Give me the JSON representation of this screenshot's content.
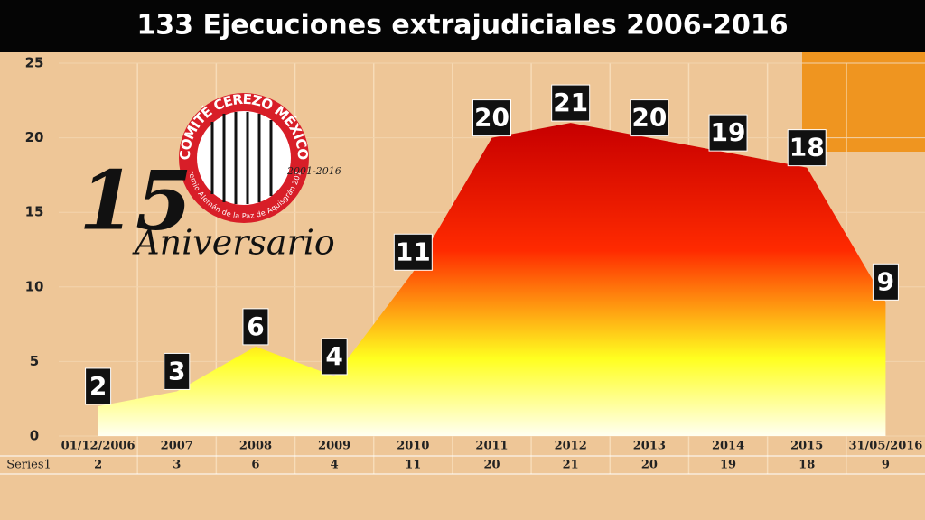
{
  "chart_data": {
    "type": "area",
    "title": "133 Ejecuciones extrajudiciales 2006-2016",
    "categories": [
      "01/12/2006",
      "2007",
      "2008",
      "2009",
      "2010",
      "2011",
      "2012",
      "2013",
      "2014",
      "2015",
      "31/05/2016"
    ],
    "series": [
      {
        "name": "Series1",
        "values": [
          2,
          3,
          6,
          4,
          11,
          20,
          21,
          20,
          19,
          18,
          9
        ]
      }
    ],
    "ylim": [
      0,
      25
    ],
    "yticks": [
      0,
      5,
      10,
      15,
      20,
      25
    ],
    "grid": true,
    "annotations": [
      "COMITÉ CEREZO MÉXICO",
      "2001-2016",
      "Premio Alemán de la Paz de Aquisgrán 2012",
      "15",
      "Aniversario"
    ]
  }
}
